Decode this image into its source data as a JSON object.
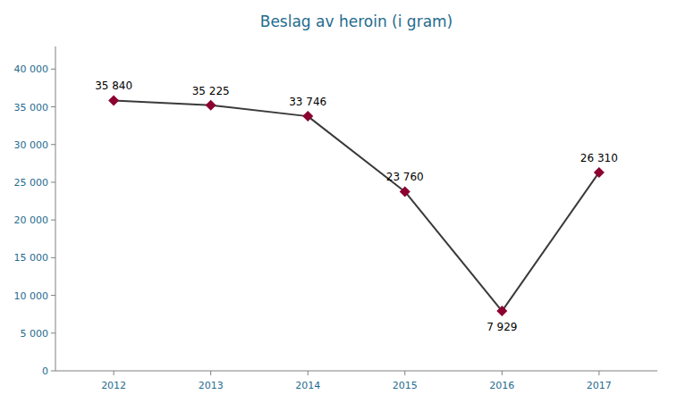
{
  "chart_data": {
    "type": "line",
    "title": "Beslag av heroin (i gram)",
    "x": [
      2012,
      2013,
      2014,
      2015,
      2016,
      2017
    ],
    "values": [
      35840,
      35225,
      33746,
      23760,
      7929,
      26310
    ],
    "value_labels": [
      "35 840",
      "35 225",
      "33 746",
      "23 760",
      "7 929",
      "26 310"
    ],
    "color": "#3a3a3a",
    "colors": [
      "#8B0030",
      "#8B0030",
      "#8B0030",
      "#8B0030",
      "#8B0030",
      "#8B0030"
    ],
    "marker": "diamond",
    "data_labels": true,
    "grid": false,
    "xlim": [
      2011.4,
      2017.6
    ],
    "xticks": [
      2012,
      2013,
      2014,
      2015,
      2016,
      2017
    ],
    "ylim": [
      0,
      43000
    ],
    "yticks": [
      0,
      {
        "value": 5000,
        "label": "5 000"
      },
      {
        "value": 10000,
        "label": "10 000"
      },
      {
        "value": 15000,
        "label": "15 000"
      },
      {
        "value": 20000,
        "label": "20 000"
      },
      {
        "value": 25000,
        "label": "25 000"
      },
      {
        "value": 30000,
        "label": "30 000"
      },
      {
        "value": 35000,
        "label": "35 000"
      },
      {
        "value": 40000,
        "label": "40 000"
      }
    ]
  }
}
